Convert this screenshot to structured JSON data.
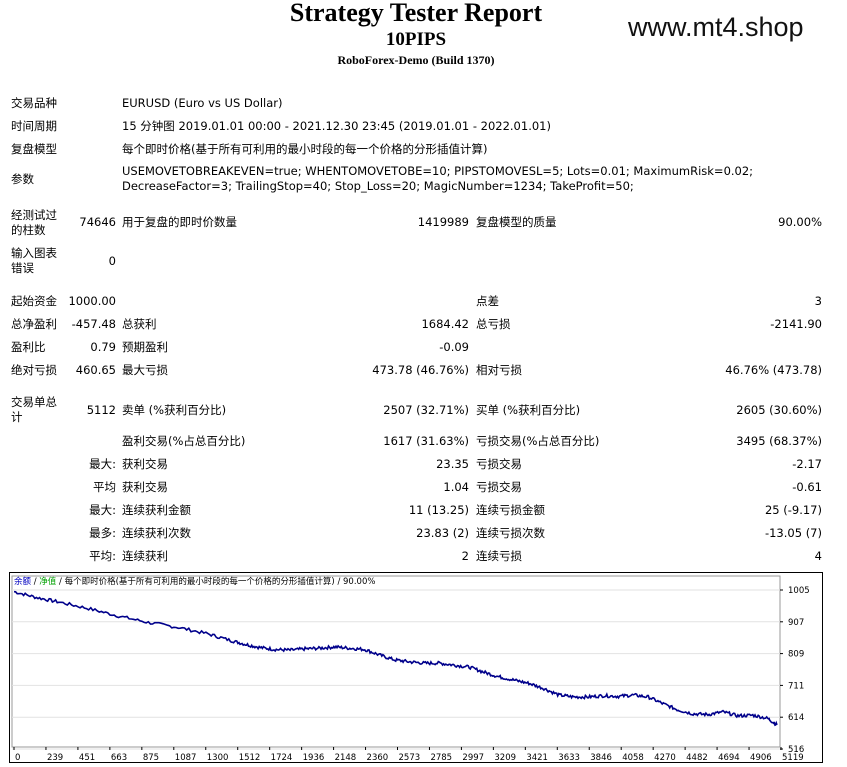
{
  "report": {
    "title": "Strategy Tester Report",
    "subtitle": "10PIPS",
    "server": "RoboForex-Demo (Build 1370)",
    "watermark": "www.mt4.shop"
  },
  "info": {
    "symbol_label": "交易品种",
    "symbol_value": "EURUSD (Euro vs US Dollar)",
    "period_label": "时间周期",
    "period_value": "15 分钟图 2019.01.01 00:00 - 2021.12.30 23:45 (2019.01.01 - 2022.01.01)",
    "model_label": "复盘模型",
    "model_value": "每个即时价格(基于所有可利用的最小时段的每一个价格的分形插值计算)",
    "params_label": "参数",
    "params_value": "USEMOVETOBREAKEVEN=true; WHENTOMOVETOBE=10; PIPSTOMOVESL=5; Lots=0.01; MaximumRisk=0.02; DecreaseFactor=3; TrailingStop=40; Stop_Loss=20; MagicNumber=1234; TakeProfit=50;"
  },
  "stats": {
    "bars_label": "经测试过的柱数",
    "bars_value": "74646",
    "ticks_label": "用于复盘的即时价数量",
    "ticks_value": "1419989",
    "quality_label": "复盘模型的质量",
    "quality_value": "90.00%",
    "mismatch_label": "输入图表错误",
    "mismatch_value": "0",
    "deposit_label": "起始资金",
    "deposit_value": "1000.00",
    "spread_label": "点差",
    "spread_value": "3",
    "net_label": "总净盈利",
    "net_value": "-457.48",
    "gross_profit_label": "总获利",
    "gross_profit_value": "1684.42",
    "gross_loss_label": "总亏损",
    "gross_loss_value": "-2141.90",
    "pf_label": "盈利比",
    "pf_value": "0.79",
    "expected_label": "预期盈利",
    "expected_value": "-0.09",
    "abs_dd_label": "绝对亏损",
    "abs_dd_value": "460.65",
    "max_dd_label": "最大亏损",
    "max_dd_value": "473.78 (46.76%)",
    "rel_dd_label": "相对亏损",
    "rel_dd_value": "46.76% (473.78)",
    "trades_label": "交易单总计",
    "trades_value": "5112",
    "short_label": "卖单 (%获利百分比)",
    "short_value": "2507 (32.71%)",
    "long_label": "买单 (%获利百分比)",
    "long_value": "2605 (30.60%)",
    "profit_trades_label": "盈利交易(%占总百分比)",
    "profit_trades_value": "1617 (31.63%)",
    "loss_trades_label": "亏损交易(%占总百分比)",
    "loss_trades_value": "3495 (68.37%)",
    "rows": [
      {
        "prefix": "最大:",
        "l1": "获利交易",
        "v1": "23.35",
        "l2": "亏损交易",
        "v2": "-2.17"
      },
      {
        "prefix": "平均",
        "l1": "获利交易",
        "v1": "1.04",
        "l2": "亏损交易",
        "v2": "-0.61"
      },
      {
        "prefix": "最大:",
        "l1": "连续获利金额",
        "v1": "11 (13.25)",
        "l2": "连续亏损金额",
        "v2": "25 (-9.17)"
      },
      {
        "prefix": "最多:",
        "l1": "连续获利次数",
        "v1": "23.83 (2)",
        "l2": "连续亏损次数",
        "v2": "-13.05 (7)"
      },
      {
        "prefix": "平均:",
        "l1": "连续获利",
        "v1": "2",
        "l2": "连续亏损",
        "v2": "4"
      }
    ]
  },
  "chart_data": {
    "type": "line",
    "legend": {
      "balance": "余额",
      "equity": "净值",
      "sep": "/",
      "info": "每个即时价格(基于所有可利用的最小时段的每一个价格的分形插值计算)",
      "quality": "90.00%"
    },
    "x_ticks": [
      "0",
      "239",
      "451",
      "663",
      "875",
      "1087",
      "1300",
      "1512",
      "1724",
      "1936",
      "2148",
      "2360",
      "2573",
      "2785",
      "2997",
      "3209",
      "3421",
      "3633",
      "3846",
      "4058",
      "4270",
      "4482",
      "4694",
      "4906",
      "5119"
    ],
    "y_ticks": [
      "1005",
      "907",
      "809",
      "711",
      "614",
      "516"
    ],
    "xlim": [
      0,
      5112
    ],
    "ylim": [
      516,
      1005
    ],
    "series": [
      {
        "x": [
          0,
          150,
          300,
          500,
          700,
          900,
          1100,
          1300,
          1450,
          1550,
          1650,
          1750,
          1850,
          1950,
          2050,
          2150,
          2250,
          2350,
          2450,
          2550,
          2650,
          2750,
          2850,
          2950,
          3050,
          3150,
          3250,
          3350,
          3450,
          3550,
          3650,
          3750,
          3850,
          3950,
          4050,
          4150,
          4250,
          4350,
          4450,
          4550,
          4650,
          4750,
          4850,
          4950,
          5050,
          5112
        ],
        "y": [
          1000,
          982,
          968,
          948,
          925,
          905,
          890,
          870,
          850,
          838,
          828,
          822,
          820,
          824,
          826,
          830,
          826,
          822,
          805,
          790,
          784,
          780,
          780,
          774,
          768,
          752,
          738,
          728,
          718,
          702,
          682,
          676,
          676,
          680,
          678,
          682,
          676,
          655,
          636,
          624,
          622,
          630,
          618,
          620,
          610,
          590
        ]
      }
    ]
  }
}
